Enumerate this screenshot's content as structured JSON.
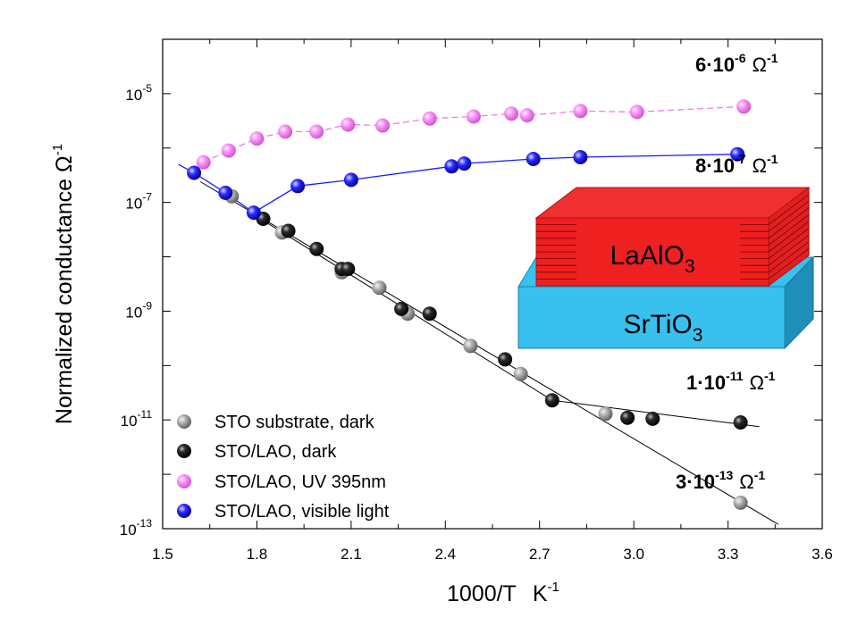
{
  "chart_data": {
    "type": "scatter",
    "y_scale": "log",
    "x_range": [
      1.5,
      3.6
    ],
    "y_range": [
      1e-13,
      0.0001
    ],
    "xlabel": {
      "main": "1000/T",
      "unit": "K",
      "unit_exp": "-1"
    },
    "ylabel": {
      "main": "Normalized conductance Ω",
      "exp": "-1"
    },
    "x_ticks": [
      "1.5",
      "1.8",
      "2.1",
      "2.4",
      "2.7",
      "3.0",
      "3.3",
      "3.6"
    ],
    "x_tick_values": [
      1.5,
      1.8,
      2.1,
      2.4,
      2.7,
      3.0,
      3.3,
      3.6
    ],
    "y_ticks": [
      {
        "value": 1e-13,
        "base": "10",
        "exp": "-13"
      },
      {
        "value": 1e-11,
        "base": "10",
        "exp": "-11"
      },
      {
        "value": 1e-09,
        "base": "10",
        "exp": "-9"
      },
      {
        "value": 1e-07,
        "base": "10",
        "exp": "-7"
      },
      {
        "value": 1e-05,
        "base": "10",
        "exp": "-5"
      }
    ],
    "series": [
      {
        "name": "STO substrate, dark",
        "color": "#8c8c8c",
        "points": [
          [
            1.72,
            1.3e-07
          ],
          [
            1.88,
            2.8e-08
          ],
          [
            2.07,
            5.2e-09
          ],
          [
            2.19,
            2.7e-09
          ],
          [
            2.28,
            9e-10
          ],
          [
            2.48,
            2.3e-10
          ],
          [
            2.64,
            7e-11
          ],
          [
            2.91,
            1.3e-11
          ],
          [
            3.34,
            3e-13
          ]
        ],
        "fit_line": [
          [
            1.62,
            2.4e-07
          ],
          [
            3.46,
            1.2e-13
          ]
        ]
      },
      {
        "name": "STO/LAO, dark",
        "color": "#000000",
        "points": [
          [
            1.82,
            5e-08
          ],
          [
            1.9,
            3e-08
          ],
          [
            1.99,
            1.4e-08
          ],
          [
            2.07,
            6e-09
          ],
          [
            2.09,
            6e-09
          ],
          [
            2.26,
            1.1e-09
          ],
          [
            2.35,
            9e-10
          ],
          [
            2.59,
            1.3e-10
          ],
          [
            2.74,
            2.3e-11
          ],
          [
            2.98,
            1.1e-11
          ],
          [
            3.06,
            1.05e-11
          ],
          [
            3.34,
            9e-12
          ]
        ],
        "fit_line": [
          [
            1.8,
            5.5e-08
          ],
          [
            2.74,
            2.3e-11
          ],
          [
            3.4,
            7.5e-12
          ]
        ]
      },
      {
        "name": "STO/LAO, UV 395nm",
        "color": "#f07af0",
        "points": [
          [
            1.63,
            5.5e-07
          ],
          [
            1.71,
            9e-07
          ],
          [
            1.8,
            1.5e-06
          ],
          [
            1.89,
            2e-06
          ],
          [
            1.99,
            2e-06
          ],
          [
            2.09,
            2.7e-06
          ],
          [
            2.2,
            2.6e-06
          ],
          [
            2.35,
            3.5e-06
          ],
          [
            2.49,
            3.8e-06
          ],
          [
            2.61,
            4.3e-06
          ],
          [
            2.66,
            4e-06
          ],
          [
            2.83,
            4.8e-06
          ],
          [
            3.01,
            4.6e-06
          ],
          [
            3.35,
            5.8e-06
          ]
        ]
      },
      {
        "name": "STO/LAO, visible light",
        "color": "#1a1aff",
        "points": [
          [
            1.6,
            3.5e-07
          ],
          [
            1.7,
            1.5e-07
          ],
          [
            1.79,
            6.5e-08
          ],
          [
            1.93,
            2e-07
          ],
          [
            2.1,
            2.6e-07
          ],
          [
            2.42,
            4.6e-07
          ],
          [
            2.46,
            5.2e-07
          ],
          [
            2.68,
            6.3e-07
          ],
          [
            2.83,
            6.8e-07
          ],
          [
            3.33,
            7.7e-07
          ]
        ]
      }
    ],
    "annotations": [
      {
        "id": "uv",
        "text": "6·10",
        "exp": "-6",
        "unit": "Ω",
        "unit_exp": "-1"
      },
      {
        "id": "vis",
        "text": "8·10",
        "exp": "-7",
        "unit": "Ω",
        "unit_exp": "-1"
      },
      {
        "id": "lao",
        "text": "1·10",
        "exp": "-11",
        "unit": "Ω",
        "unit_exp": "-1"
      },
      {
        "id": "sto",
        "text": "3·10",
        "exp": "-13",
        "unit": "Ω",
        "unit_exp": "-1"
      }
    ],
    "legend": {
      "placement": "bottom-left"
    },
    "inset": {
      "top_layer": {
        "label": "LaAlO",
        "sub": "3",
        "color": "#ee2020"
      },
      "bottom_layer": {
        "label": "SrTiO",
        "sub": "3",
        "color": "#38c0ee"
      }
    }
  }
}
